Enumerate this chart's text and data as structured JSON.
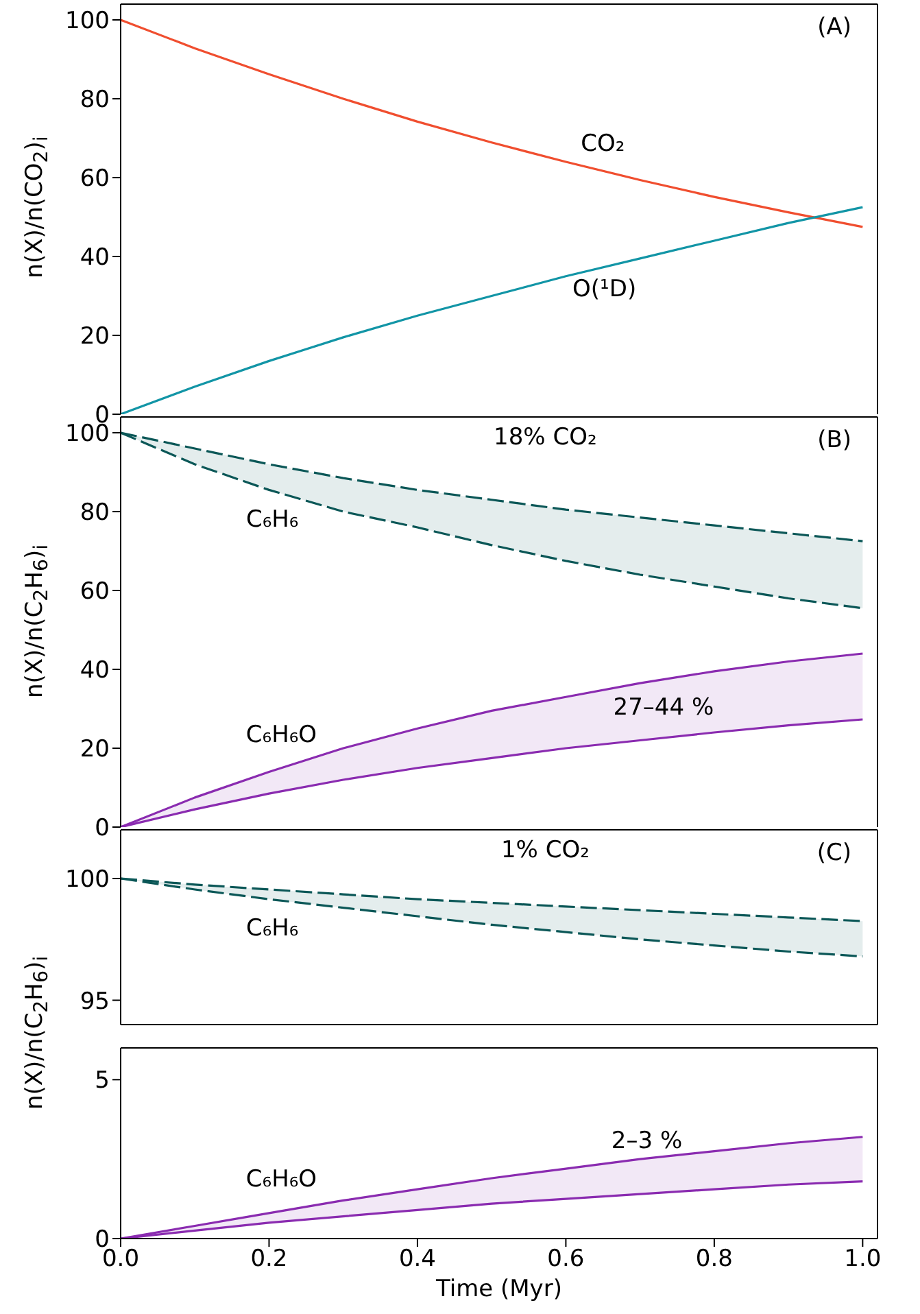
{
  "chart_data": [
    {
      "type": "line",
      "title": "(A)",
      "ylabel": "n(X)/n(CO$_{2}$)$_{i}$",
      "xlim": [
        0,
        1.02
      ],
      "xticks": [
        0,
        0.2,
        0.4,
        0.6,
        0.8,
        1.0
      ],
      "ylim": [
        0,
        104
      ],
      "yticks": [
        0,
        20,
        40,
        60,
        80,
        100
      ],
      "tick_labels": "y",
      "x": [
        0,
        0.1,
        0.2,
        0.3,
        0.4,
        0.5,
        0.6,
        0.7,
        0.8,
        0.9,
        1.0
      ],
      "series": [
        {
          "color": "#f04e2f",
          "values": [
            100,
            92.8,
            86.2,
            80,
            74.2,
            68.9,
            64,
            59.4,
            55.1,
            51.2,
            47.5
          ]
        },
        {
          "color": "#1295a6",
          "values": [
            0,
            7,
            13.5,
            19.5,
            25,
            30,
            35,
            39.5,
            44,
            48.5,
            52.5
          ]
        }
      ],
      "annotations": [
        "CO₂",
        "O(¹D)"
      ]
    },
    {
      "type": "line",
      "title": "(B)",
      "subtitle": "18% CO₂",
      "ylabel": "n(X)/n(C$_{2}$H$_{6}$)$_{i}$",
      "xlim": [
        0,
        1.02
      ],
      "xticks": [
        0,
        0.2,
        0.4,
        0.6,
        0.8,
        1.0
      ],
      "ylim": [
        0,
        104
      ],
      "yticks": [
        0,
        20,
        40,
        60,
        80,
        100
      ],
      "tick_labels": "y",
      "x": [
        0,
        0.1,
        0.2,
        0.3,
        0.4,
        0.5,
        0.6,
        0.7,
        0.8,
        0.9,
        1.0
      ],
      "series": [
        {
          "color": "#0b5757",
          "line_style": "dashed",
          "values": [
            100,
            96,
            92,
            88.5,
            85.5,
            83,
            80.5,
            78.5,
            76.5,
            74.5,
            72.5
          ],
          "lower": [
            100,
            92,
            85.5,
            80,
            76,
            71.5,
            67.5,
            64,
            61,
            58,
            55.5
          ],
          "upper": [
            100,
            96,
            92,
            88.5,
            85.5,
            83,
            80.5,
            78.5,
            76.5,
            74.5,
            72.5
          ]
        },
        {
          "color": "#0b5757",
          "line_style": "dashed",
          "values": [
            100,
            92,
            85.5,
            80,
            76,
            71.5,
            67.5,
            64,
            61,
            58,
            55.5
          ]
        },
        {
          "color": "#8a2bb0",
          "values": [
            0,
            7.5,
            14,
            20,
            25,
            29.5,
            33,
            36.5,
            39.5,
            42,
            44
          ],
          "lower": [
            0,
            4.5,
            8.5,
            12,
            15,
            17.5,
            20,
            22,
            24,
            25.8,
            27.3
          ],
          "upper": [
            0,
            7.5,
            14,
            20,
            25,
            29.5,
            33,
            36.5,
            39.5,
            42,
            44
          ]
        },
        {
          "color": "#8a2bb0",
          "values": [
            0,
            4.5,
            8.5,
            12,
            15,
            17.5,
            20,
            22,
            24,
            25.8,
            27.3
          ]
        }
      ],
      "annotations": [
        "C₆H₆",
        "C₆H₆O",
        "27–44 %"
      ]
    },
    {
      "type": "line",
      "title": "(C)",
      "subtitle": "1% CO₂",
      "ylabel": "n(X)/n(C$_{2}$H$_{6}$)$_{i}$",
      "xlim": [
        0,
        1.02
      ],
      "xticks": [
        0,
        0.2,
        0.4,
        0.6,
        0.8,
        1.0
      ],
      "ylim": [
        94,
        102
      ],
      "yticks": [
        95,
        100
      ],
      "tick_labels": "y",
      "x": [
        0,
        0.1,
        0.2,
        0.3,
        0.4,
        0.5,
        0.6,
        0.7,
        0.8,
        0.9,
        1.0
      ],
      "series": [
        {
          "color": "#0b5757",
          "line_style": "dashed",
          "values": [
            100,
            99.75,
            99.55,
            99.35,
            99.15,
            99,
            98.85,
            98.7,
            98.55,
            98.4,
            98.25
          ],
          "lower": [
            100,
            99.55,
            99.15,
            98.8,
            98.45,
            98.1,
            97.8,
            97.5,
            97.25,
            97,
            96.8
          ],
          "upper": [
            100,
            99.75,
            99.55,
            99.35,
            99.15,
            99,
            98.85,
            98.7,
            98.55,
            98.4,
            98.25
          ]
        },
        {
          "color": "#0b5757",
          "line_style": "dashed",
          "values": [
            100,
            99.55,
            99.15,
            98.8,
            98.45,
            98.1,
            97.8,
            97.5,
            97.25,
            97,
            96.8
          ]
        }
      ],
      "annotations": [
        "C₆H₆"
      ]
    },
    {
      "type": "line",
      "xlabel": "Time (Myr)",
      "xlim": [
        0,
        1.02
      ],
      "xticks": [
        {
          "value": 0,
          "label": "0.0"
        },
        0.2,
        0.4,
        0.6,
        0.8,
        {
          "value": 1,
          "label": "1.0"
        }
      ],
      "ylim": [
        0,
        6
      ],
      "yticks": [
        0,
        5
      ],
      "x": [
        0,
        0.1,
        0.2,
        0.3,
        0.4,
        0.5,
        0.6,
        0.7,
        0.8,
        0.9,
        1.0
      ],
      "series": [
        {
          "color": "#8a2bb0",
          "values": [
            0,
            0.4,
            0.8,
            1.2,
            1.55,
            1.9,
            2.2,
            2.5,
            2.75,
            3,
            3.2
          ],
          "lower": [
            0,
            0.25,
            0.5,
            0.7,
            0.9,
            1.1,
            1.25,
            1.4,
            1.55,
            1.7,
            1.8
          ],
          "upper": [
            0,
            0.4,
            0.8,
            1.2,
            1.55,
            1.9,
            2.2,
            2.5,
            2.75,
            3,
            3.2
          ]
        },
        {
          "color": "#8a2bb0",
          "values": [
            0,
            0.25,
            0.5,
            0.7,
            0.9,
            1.1,
            1.25,
            1.4,
            1.55,
            1.7,
            1.8
          ]
        }
      ],
      "annotations": [
        "C₆H₆O",
        "2–3 %"
      ]
    }
  ]
}
